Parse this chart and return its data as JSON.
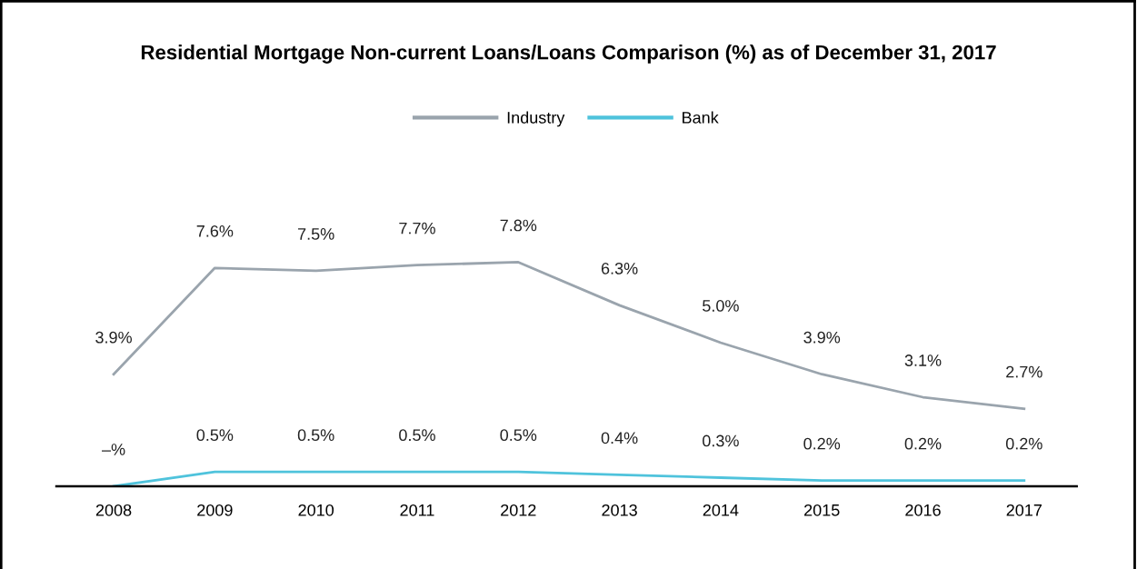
{
  "chart_data": {
    "type": "line",
    "title": "Residential Mortgage Non-current Loans/Loans Comparison (%) as of December 31, 2017",
    "categories": [
      "2008",
      "2009",
      "2010",
      "2011",
      "2012",
      "2013",
      "2014",
      "2015",
      "2016",
      "2017"
    ],
    "series": [
      {
        "name": "Industry",
        "color": "#9aa4ad",
        "values": [
          3.9,
          7.6,
          7.5,
          7.7,
          7.8,
          6.3,
          5.0,
          3.9,
          3.1,
          2.7
        ],
        "value_labels": [
          "3.9%",
          "7.6%",
          "7.5%",
          "7.7%",
          "7.8%",
          "6.3%",
          "5.0%",
          "3.9%",
          "3.1%",
          "2.7%"
        ]
      },
      {
        "name": "Bank",
        "color": "#4fc3dc",
        "values": [
          0,
          0.5,
          0.5,
          0.5,
          0.5,
          0.4,
          0.3,
          0.2,
          0.2,
          0.2
        ],
        "value_labels": [
          "–%",
          "0.5%",
          "0.5%",
          "0.5%",
          "0.5%",
          "0.4%",
          "0.3%",
          "0.2%",
          "0.2%",
          "0.2%"
        ]
      }
    ],
    "tick_labels": "x",
    "grid": false,
    "legend": "top",
    "marker": "none",
    "line_style": "solid"
  }
}
